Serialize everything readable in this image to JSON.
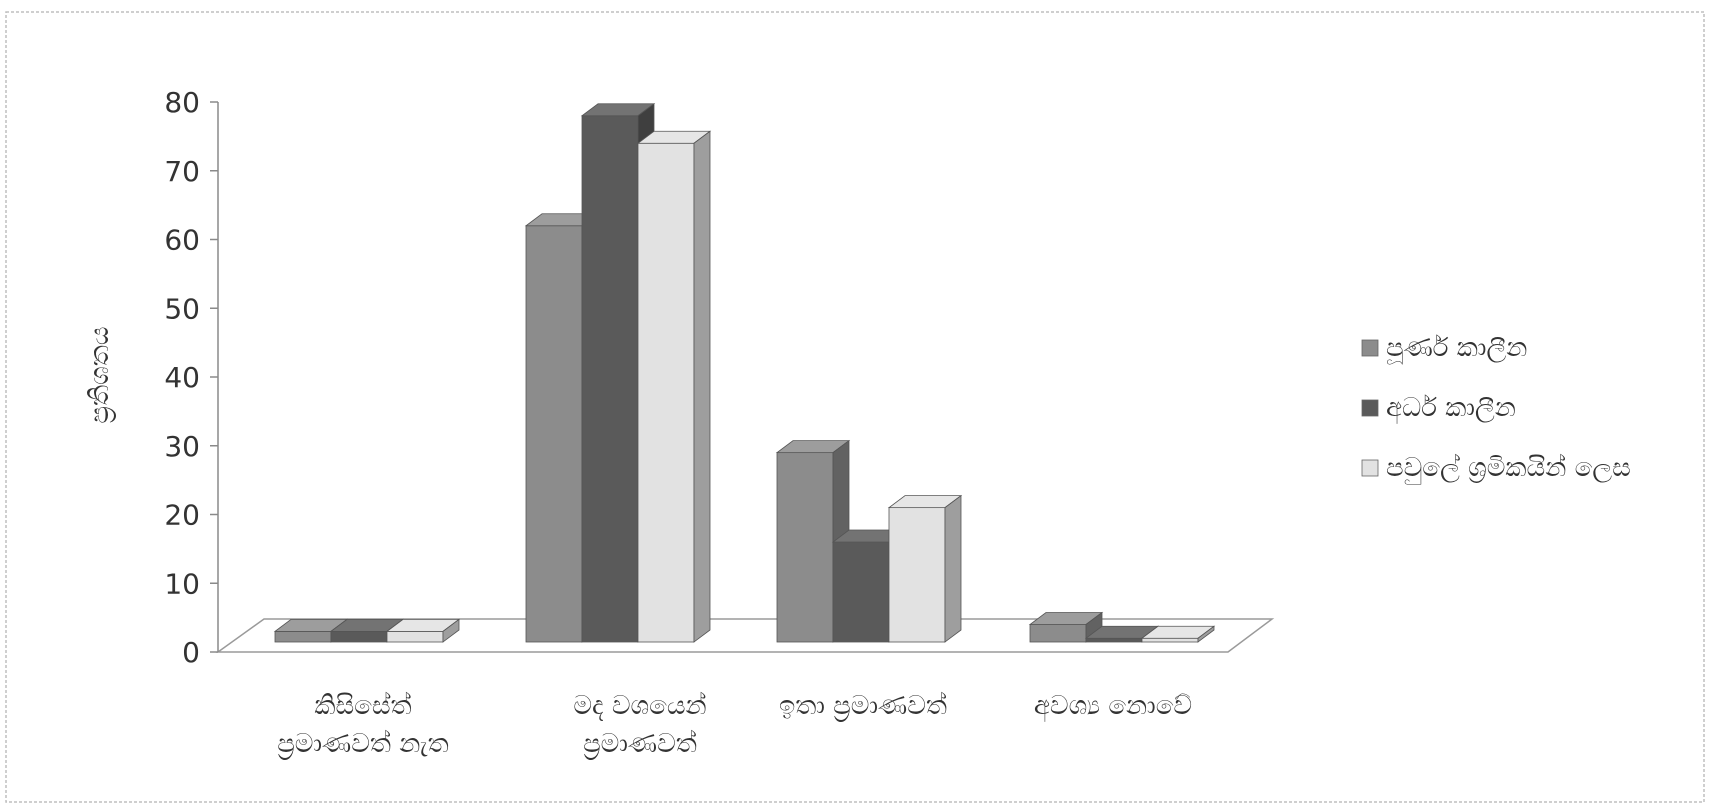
{
  "chart_data": {
    "type": "bar",
    "ylabel": "ප්‍රතිශතය",
    "ylim": [
      0,
      80
    ],
    "yticks": [
      0,
      10,
      20,
      30,
      40,
      50,
      60,
      70,
      80
    ],
    "categories": [
      [
        "කිසිසේත්",
        "ප්‍රමාණවත් නැත"
      ],
      [
        "මද වශයෙන්",
        "ප්‍රමාණවත්"
      ],
      [
        "ඉතා ප්‍රමාණවත්"
      ],
      [
        "අවශ්‍ය නොවේ"
      ]
    ],
    "series": [
      {
        "name": "පූර්ණ කාලීන",
        "values": [
          3,
          62,
          29,
          4
        ],
        "color": "#8c8c8c"
      },
      {
        "name": "අර්ධ කාලීන",
        "values": [
          3,
          78,
          16,
          2
        ],
        "color": "#5a5a5a"
      },
      {
        "name": "පවුලේ ශ්‍රමිකයින් ලෙස",
        "values": [
          3,
          74,
          21,
          2
        ],
        "color": "#e2e2e2"
      }
    ],
    "legend_position": "right",
    "grid": false
  }
}
